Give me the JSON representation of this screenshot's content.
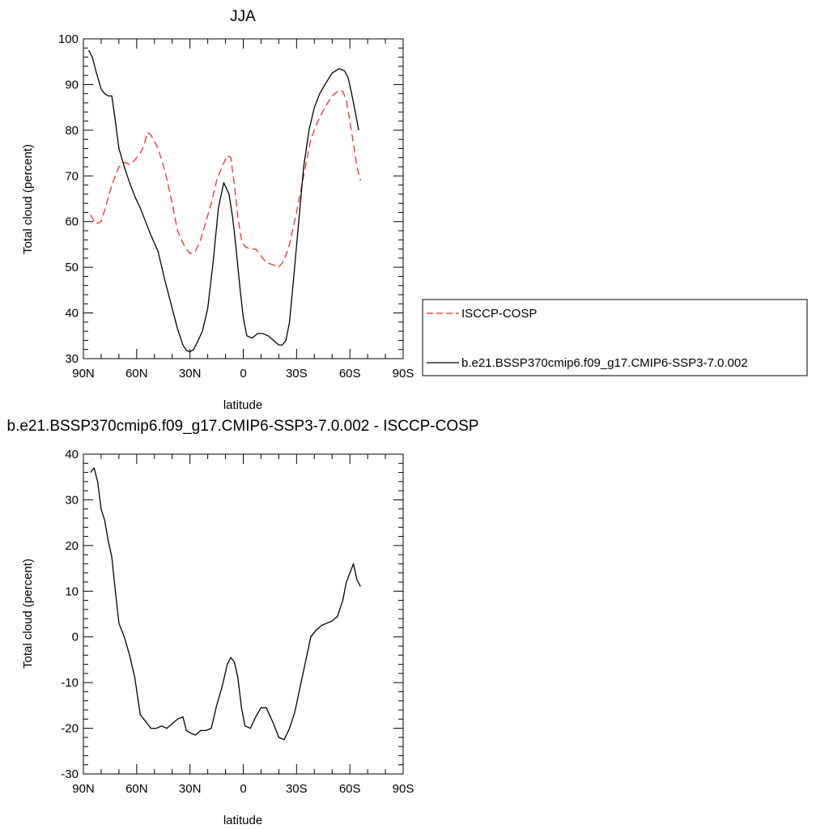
{
  "chart_data": [
    {
      "type": "line",
      "title": "JJA",
      "xlabel": "latitude",
      "ylabel": "Total cloud (percent)",
      "xlim": [
        -90,
        90
      ],
      "ylim": [
        30,
        100
      ],
      "x_ticks": [
        -90,
        -60,
        -30,
        0,
        30,
        60,
        90
      ],
      "x_tick_labels": [
        "90N",
        "60N",
        "30N",
        "0",
        "30S",
        "60S",
        "90S"
      ],
      "y_ticks": [
        30,
        40,
        50,
        60,
        70,
        80,
        90,
        100
      ],
      "y_tick_labels": [
        "30",
        "40",
        "50",
        "60",
        "70",
        "80",
        "90",
        "100"
      ],
      "grid": false,
      "legend_position": "right",
      "series": [
        {
          "name": "ISCCP-COSP",
          "color": "#e8322b",
          "style": "dashed",
          "x": [
            -86,
            -83,
            -80,
            -78,
            -74,
            -70,
            -67,
            -64,
            -61,
            -58,
            -56,
            -54,
            -52,
            -48,
            -44,
            -40,
            -37,
            -33,
            -30,
            -27,
            -24,
            -21,
            -18,
            -15,
            -12,
            -9,
            -7,
            -5,
            -3,
            -1,
            1,
            4,
            7,
            10,
            13,
            17,
            20,
            23,
            26,
            30,
            34,
            38,
            42,
            46,
            50,
            54,
            56,
            58,
            60,
            62,
            64,
            66
          ],
          "y": [
            61.5,
            59.5,
            60,
            62.5,
            68,
            72,
            73,
            72.5,
            73.5,
            75,
            76.5,
            79.5,
            79,
            76,
            71,
            64,
            58,
            54.5,
            53,
            53.5,
            56,
            60,
            64,
            69,
            72,
            74.5,
            74,
            68,
            61,
            56,
            54.5,
            54,
            54,
            52.5,
            51,
            50.5,
            50,
            51.5,
            55,
            62,
            70,
            78,
            82,
            85,
            87.5,
            88.8,
            88.5,
            86.5,
            82,
            77,
            72,
            69
          ]
        },
        {
          "name": "b.e21.BSSP370cmip6.f09_g17.CMIP6-SSP3-7.0.002",
          "color": "#000000",
          "style": "solid",
          "x": [
            -87,
            -85,
            -83,
            -80,
            -78,
            -76,
            -74,
            -72,
            -70,
            -67,
            -64,
            -61,
            -58,
            -55,
            -52,
            -48,
            -44,
            -40,
            -37,
            -34,
            -32,
            -30,
            -28,
            -26,
            -23,
            -20,
            -17,
            -14,
            -11,
            -8,
            -6,
            -4,
            -2,
            0,
            2,
            5,
            8,
            11,
            14,
            17,
            20,
            22,
            24,
            26,
            28,
            31,
            34,
            37,
            40,
            43,
            46,
            50,
            54,
            57,
            59,
            61,
            63,
            65
          ],
          "y": [
            97.5,
            96,
            93,
            89,
            88,
            87.5,
            87.5,
            82,
            76,
            72,
            68.5,
            65.5,
            63,
            60,
            57,
            53.5,
            47,
            41,
            36.5,
            33,
            31.8,
            31.5,
            32,
            33.5,
            36,
            41,
            51,
            63,
            68.5,
            66,
            61,
            54,
            46,
            39,
            35,
            34.5,
            35.5,
            35.5,
            35,
            34,
            33,
            33,
            34,
            38,
            46,
            59,
            72,
            80,
            85,
            88,
            90,
            92.5,
            93.5,
            93,
            91.5,
            88,
            84,
            80
          ]
        }
      ]
    },
    {
      "type": "line",
      "title": "b.e21.BSSP370cmip6.f09_g17.CMIP6-SSP3-7.0.002 - ISCCP-COSP",
      "xlabel": "latitude",
      "ylabel": "Total cloud (percent)",
      "xlim": [
        -90,
        90
      ],
      "ylim": [
        -30,
        40
      ],
      "x_ticks": [
        -90,
        -60,
        -30,
        0,
        30,
        60,
        90
      ],
      "x_tick_labels": [
        "90N",
        "60N",
        "30N",
        "0",
        "30S",
        "60S",
        "90S"
      ],
      "y_ticks": [
        -30,
        -20,
        -10,
        0,
        10,
        20,
        30,
        40
      ],
      "y_tick_labels": [
        "-30",
        "-20",
        "-10",
        "0",
        "10",
        "20",
        "30",
        "40"
      ],
      "grid": false,
      "series": [
        {
          "color": "#000000",
          "style": "solid",
          "x": [
            -86,
            -84,
            -82,
            -80,
            -78,
            -76,
            -74,
            -72,
            -70,
            -67,
            -64,
            -61,
            -58,
            -55,
            -52,
            -49,
            -46,
            -43,
            -40,
            -37,
            -34,
            -32,
            -30,
            -27,
            -24,
            -21,
            -18,
            -15,
            -12,
            -9,
            -7,
            -5,
            -3,
            -1,
            1,
            4,
            7,
            10,
            13,
            17,
            20,
            23,
            26,
            29,
            32,
            35,
            38,
            41,
            44,
            47,
            50,
            53,
            56,
            58,
            60,
            62,
            64,
            66
          ],
          "y": [
            36,
            37,
            34,
            28,
            25.5,
            21,
            17.5,
            10,
            3,
            0,
            -4,
            -9,
            -17,
            -18.5,
            -20,
            -20,
            -19.5,
            -20,
            -19,
            -18,
            -17.5,
            -20.5,
            -21,
            -21.5,
            -20.5,
            -20.5,
            -20,
            -15,
            -11,
            -6,
            -4.5,
            -5.5,
            -9,
            -15.5,
            -19.5,
            -20,
            -17.5,
            -15.5,
            -15.5,
            -19,
            -22,
            -22.5,
            -20,
            -16.5,
            -11,
            -5.5,
            0,
            1.5,
            2.5,
            3,
            3.5,
            4.5,
            8,
            12,
            14,
            16,
            12.5,
            11
          ]
        }
      ]
    }
  ]
}
